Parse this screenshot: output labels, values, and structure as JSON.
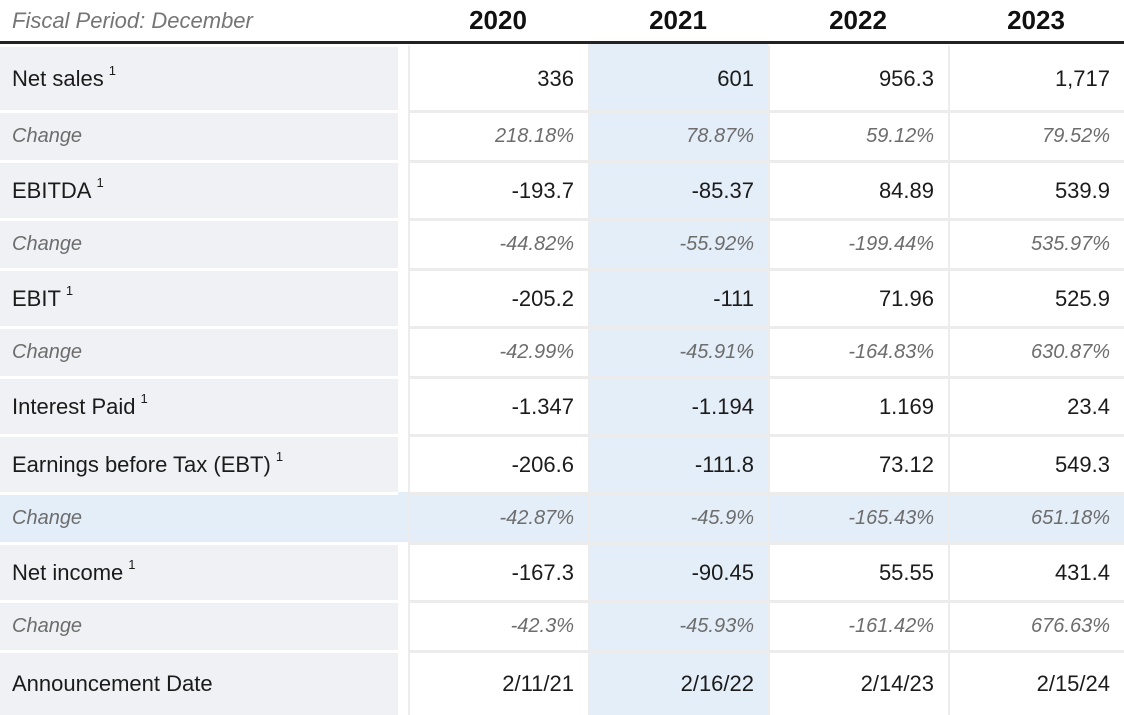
{
  "header": {
    "fiscal_period_label": "Fiscal Period: December",
    "years": [
      "2020",
      "2021",
      "2022",
      "2023"
    ]
  },
  "table": {
    "highlighted_column_year": "2021",
    "highlighted_row_index": 8,
    "footnote_marker": "1",
    "rows": [
      {
        "label": "Net sales",
        "sup": "1",
        "type": "metric",
        "values": [
          "336",
          "601",
          "956.3",
          "1,717"
        ]
      },
      {
        "label": "Change",
        "type": "change",
        "values": [
          "218.18%",
          "78.87%",
          "59.12%",
          "79.52%"
        ]
      },
      {
        "label": "EBITDA",
        "sup": "1",
        "type": "metric",
        "values": [
          "-193.7",
          "-85.37",
          "84.89",
          "539.9"
        ]
      },
      {
        "label": "Change",
        "type": "change",
        "values": [
          "-44.82%",
          "-55.92%",
          "-199.44%",
          "535.97%"
        ]
      },
      {
        "label": "EBIT",
        "sup": "1",
        "type": "metric",
        "values": [
          "-205.2",
          "-111",
          "71.96",
          "525.9"
        ]
      },
      {
        "label": "Change",
        "type": "change",
        "values": [
          "-42.99%",
          "-45.91%",
          "-164.83%",
          "630.87%"
        ]
      },
      {
        "label": "Interest Paid",
        "sup": "1",
        "type": "metric",
        "values": [
          "-1.347",
          "-1.194",
          "1.169",
          "23.4"
        ]
      },
      {
        "label": "Earnings before Tax (EBT)",
        "sup": "1",
        "type": "metric",
        "values": [
          "-206.6",
          "-111.8",
          "73.12",
          "549.3"
        ]
      },
      {
        "label": "Change",
        "type": "change",
        "highlighted": true,
        "values": [
          "-42.87%",
          "-45.9%",
          "-165.43%",
          "651.18%"
        ]
      },
      {
        "label": "Net income",
        "sup": "1",
        "type": "metric",
        "values": [
          "-167.3",
          "-90.45",
          "55.55",
          "431.4"
        ]
      },
      {
        "label": "Change",
        "type": "change",
        "values": [
          "-42.3%",
          "-45.93%",
          "-161.42%",
          "676.63%"
        ]
      },
      {
        "label": "Announcement Date",
        "type": "metric",
        "values": [
          "2/11/21",
          "2/16/22",
          "2/14/23",
          "2/15/24"
        ]
      }
    ]
  },
  "colors": {
    "highlight_blue": "#e4eef8",
    "label_bg": "#eff1f4",
    "separator": "#ececec",
    "header_border": "#232323",
    "text_primary": "#1b1b1b",
    "text_muted": "#6d6d6d"
  }
}
